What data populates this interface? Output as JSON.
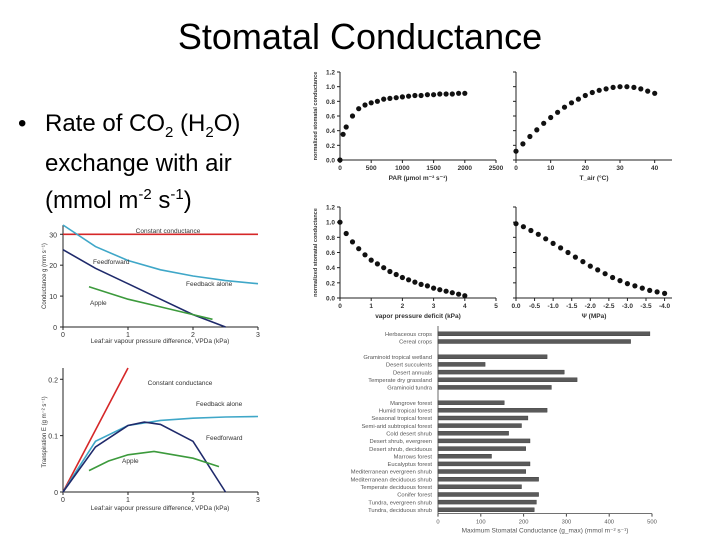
{
  "slide": {
    "title": "Stomatal Conductance",
    "bullet": {
      "symbol": "•",
      "line1_a": "Rate of CO",
      "line1_sub1": "2",
      "line1_b": " (H",
      "line1_sub2": "2",
      "line1_c": "O)",
      "line2": "exchange with air",
      "line3_a": "(mmol m",
      "line3_sup1": "-2",
      "line3_b": " s",
      "line3_sup2": "-1",
      "line3_c": ")"
    }
  },
  "left_top_chart": {
    "ylabel": "Conductance g (mm s⁻¹)",
    "xlabel": "Leaf:air vapour pressure difference, VPDa (kPa)",
    "yticks": [
      "0",
      "10",
      "20",
      "30"
    ],
    "xticks": [
      "0",
      "1",
      "2",
      "3"
    ],
    "curve_labels": {
      "constant": "Constant conductance",
      "feedforward": "Feedforward",
      "feedback": "Feedback alone",
      "apple": "Apple"
    }
  },
  "left_bottom_chart": {
    "ylabel": "Transpiration E (g m⁻² s⁻¹)",
    "xlabel": "Leaf:air vapour pressure difference, VPDa (kPa)",
    "yticks": [
      "0",
      "0.1",
      "0.2"
    ],
    "xticks": [
      "0",
      "1",
      "2",
      "3"
    ],
    "curve_labels": {
      "constant": "Constant conductance",
      "feedback": "Feedback alone",
      "feedforward": "Feedforward",
      "apple": "Apple"
    }
  },
  "right_panels": {
    "ylabel": "normalized stomatal conductance",
    "yticks": [
      "0.0",
      "0.2",
      "0.4",
      "0.6",
      "0.8",
      "1.0",
      "1.2"
    ],
    "par": {
      "xlabel": "PAR (µmol m⁻² s⁻¹)",
      "xticks": [
        "0",
        "500",
        "1000",
        "1500",
        "2000",
        "2500"
      ]
    },
    "temp": {
      "xlabel": "T_air (°C)",
      "xticks": [
        "0",
        "10",
        "20",
        "30",
        "40"
      ]
    },
    "vpd": {
      "xlabel": "vapor pressure deficit (kPa)",
      "xticks": [
        "0",
        "1",
        "2",
        "3",
        "4",
        "5"
      ]
    },
    "psi": {
      "xlabel": "Ψ (MPa)",
      "xticks": [
        "0.0",
        "-0.5",
        "-1.0",
        "-1.5",
        "-2.0",
        "-2.5",
        "-3.0",
        "-3.5",
        "-4.0"
      ]
    }
  },
  "chart_data": [
    {
      "type": "line",
      "title": "",
      "xlabel": "Leaf:air vapour pressure difference, VPDa (kPa)",
      "ylabel": "Conductance g (mm s⁻¹)",
      "xlim": [
        0,
        3
      ],
      "ylim": [
        0,
        33
      ],
      "series": [
        {
          "name": "Constant conductance",
          "color": "#d62728",
          "x": [
            0,
            1,
            2,
            3
          ],
          "y": [
            30,
            30,
            30,
            30
          ]
        },
        {
          "name": "Feedforward",
          "color": "#1f2a6b",
          "x": [
            0,
            0.5,
            1,
            1.5,
            2,
            2.5
          ],
          "y": [
            25,
            19,
            14,
            9,
            4,
            0
          ]
        },
        {
          "name": "Feedback alone",
          "color": "#3fa7c8",
          "x": [
            0,
            0.5,
            1,
            1.5,
            2,
            2.5,
            3
          ],
          "y": [
            33,
            26,
            21.5,
            18.5,
            16.5,
            15,
            14
          ]
        },
        {
          "name": "Apple",
          "color": "#3c9a3c",
          "x": [
            0.4,
            0.7,
            1,
            1.5,
            2,
            2.3
          ],
          "y": [
            13,
            11,
            9,
            6.5,
            4,
            2.5
          ]
        }
      ]
    },
    {
      "type": "line",
      "title": "",
      "xlabel": "Leaf:air vapour pressure difference, VPDa (kPa)",
      "ylabel": "Transpiration E (g m⁻² s⁻¹)",
      "xlim": [
        0,
        3
      ],
      "ylim": [
        0,
        0.22
      ],
      "series": [
        {
          "name": "Constant conductance",
          "color": "#d62728",
          "x": [
            0,
            1
          ],
          "y": [
            0,
            0.22
          ]
        },
        {
          "name": "Feedback alone",
          "color": "#3fa7c8",
          "x": [
            0,
            0.5,
            1,
            1.5,
            2,
            2.5,
            3
          ],
          "y": [
            0,
            0.09,
            0.118,
            0.127,
            0.131,
            0.133,
            0.134
          ]
        },
        {
          "name": "Feedforward",
          "color": "#1f2a6b",
          "x": [
            0,
            0.5,
            1,
            1.25,
            1.5,
            2,
            2.5
          ],
          "y": [
            0,
            0.08,
            0.118,
            0.124,
            0.12,
            0.09,
            0.0
          ]
        },
        {
          "name": "Apple",
          "color": "#3c9a3c",
          "x": [
            0.4,
            0.7,
            1,
            1.4,
            2,
            2.4
          ],
          "y": [
            0.038,
            0.055,
            0.066,
            0.072,
            0.06,
            0.045
          ]
        }
      ]
    },
    {
      "type": "scatter",
      "xlabel": "PAR (µmol m⁻² s⁻¹)",
      "ylabel": "normalized stomatal conductance",
      "xlim": [
        0,
        2500
      ],
      "ylim": [
        0,
        1.2
      ],
      "x": [
        0,
        50,
        100,
        200,
        300,
        400,
        500,
        600,
        700,
        800,
        900,
        1000,
        1100,
        1200,
        1300,
        1400,
        1500,
        1600,
        1700,
        1800,
        1900,
        2000
      ],
      "y": [
        0.0,
        0.35,
        0.45,
        0.6,
        0.7,
        0.75,
        0.78,
        0.8,
        0.83,
        0.84,
        0.85,
        0.86,
        0.87,
        0.88,
        0.88,
        0.89,
        0.89,
        0.9,
        0.9,
        0.9,
        0.91,
        0.91
      ]
    },
    {
      "type": "scatter",
      "xlabel": "T_air (°C)",
      "ylabel": "normalized stomatal conductance",
      "xlim": [
        0,
        45
      ],
      "ylim": [
        0,
        1.2
      ],
      "x": [
        0,
        2,
        4,
        6,
        8,
        10,
        12,
        14,
        16,
        18,
        20,
        22,
        24,
        26,
        28,
        30,
        32,
        34,
        36,
        38,
        40
      ],
      "y": [
        0.12,
        0.22,
        0.32,
        0.41,
        0.5,
        0.58,
        0.65,
        0.72,
        0.78,
        0.83,
        0.88,
        0.92,
        0.95,
        0.97,
        0.99,
        1.0,
        1.0,
        0.99,
        0.97,
        0.94,
        0.91
      ]
    },
    {
      "type": "scatter",
      "xlabel": "vapor pressure deficit (kPa)",
      "ylabel": "normalized stomatal conductance",
      "xlim": [
        0,
        5
      ],
      "ylim": [
        0,
        1.2
      ],
      "x": [
        0,
        0.2,
        0.4,
        0.6,
        0.8,
        1,
        1.2,
        1.4,
        1.6,
        1.8,
        2,
        2.2,
        2.4,
        2.6,
        2.8,
        3,
        3.2,
        3.4,
        3.6,
        3.8,
        4
      ],
      "y": [
        1.0,
        0.85,
        0.74,
        0.65,
        0.57,
        0.5,
        0.45,
        0.4,
        0.35,
        0.31,
        0.27,
        0.24,
        0.21,
        0.18,
        0.16,
        0.13,
        0.11,
        0.09,
        0.07,
        0.05,
        0.03
      ]
    },
    {
      "type": "scatter",
      "xlabel": "Ψ (MPa)",
      "ylabel": "normalized stomatal conductance",
      "xlim": [
        0,
        -4.2
      ],
      "ylim": [
        0,
        1.2
      ],
      "x": [
        0,
        -0.2,
        -0.4,
        -0.6,
        -0.8,
        -1.0,
        -1.2,
        -1.4,
        -1.6,
        -1.8,
        -2.0,
        -2.2,
        -2.4,
        -2.6,
        -2.8,
        -3.0,
        -3.2,
        -3.4,
        -3.6,
        -3.8,
        -4.0
      ],
      "y": [
        0.98,
        0.94,
        0.89,
        0.84,
        0.78,
        0.72,
        0.66,
        0.6,
        0.54,
        0.48,
        0.42,
        0.37,
        0.32,
        0.27,
        0.23,
        0.19,
        0.16,
        0.13,
        0.1,
        0.08,
        0.06
      ]
    },
    {
      "type": "bar",
      "orientation": "horizontal",
      "xlabel": "Maximum Stomatal Conductance (g_max) (mmol m⁻² s⁻¹)",
      "xlim": [
        0,
        500
      ],
      "xticks": [
        "0",
        "100",
        "200",
        "300",
        "400",
        "500"
      ],
      "categories": [
        "Herbaceous crops",
        "Cereal crops",
        "",
        "Graminoid tropical wetland",
        "Desert succulents",
        "Desert annuals",
        "Temperate dry grassland",
        "Graminoid tundra",
        "",
        "Mangrove forest",
        "Humid tropical forest",
        "Seasonal tropical forest",
        "Semi-arid subtropical forest",
        "Cold desert shrub",
        "Desert shrub, evergreen",
        "Desert shrub, deciduous",
        "Marrows forest",
        "Eucalyptus forest",
        "Mediterranean evergreen shrub",
        "Mediterranean deciduous shrub",
        "Temperate deciduous forest",
        "Conifer forest",
        "Tundra, evergreen shrub",
        "Tundra, deciduous shrub"
      ],
      "values": [
        495,
        450,
        null,
        255,
        110,
        295,
        325,
        265,
        null,
        155,
        255,
        210,
        195,
        165,
        215,
        205,
        125,
        215,
        205,
        235,
        195,
        235,
        230,
        225
      ]
    }
  ]
}
